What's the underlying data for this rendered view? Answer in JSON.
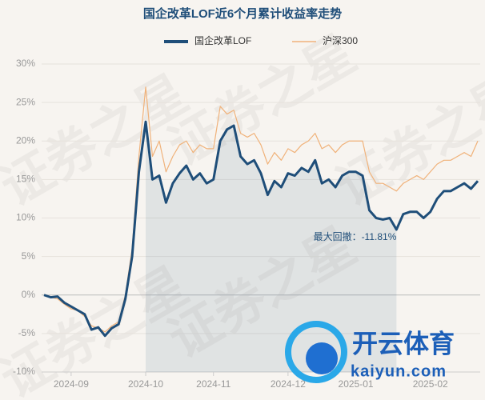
{
  "chart_data": {
    "type": "line",
    "title": "国企改革LOF近6个月累计收益率走势",
    "annotation": "最大回撤：-11.81%",
    "watermark": "证券之星",
    "logo_text": "开云体育",
    "logo_subtext": "kaiyun.com",
    "categories": [
      null,
      null,
      null,
      null,
      "2024-09",
      null,
      null,
      null,
      null,
      null,
      null,
      null,
      null,
      null,
      null,
      "2024-10",
      null,
      null,
      null,
      null,
      null,
      null,
      null,
      null,
      null,
      "2024-11",
      null,
      null,
      null,
      null,
      null,
      null,
      null,
      null,
      null,
      null,
      "2024-12",
      null,
      null,
      null,
      null,
      null,
      null,
      null,
      null,
      null,
      "2025-01",
      null,
      null,
      null,
      null,
      null,
      null,
      null,
      null,
      null,
      null,
      "2025-02",
      null,
      null,
      null,
      null,
      null,
      null,
      null
    ],
    "series": [
      {
        "name": "国企改革LOF",
        "color": "#1f4e79",
        "values": [
          0,
          -0.3,
          -0.2,
          -1,
          -1.5,
          -2,
          -2.5,
          -4.5,
          -4.2,
          -5.3,
          -4.3,
          -3.8,
          -0.5,
          5,
          16,
          22.5,
          15,
          15.5,
          12,
          14.5,
          15.8,
          16.8,
          15,
          15.8,
          14.5,
          15,
          20,
          21.5,
          22,
          18,
          17,
          17.5,
          15.8,
          13,
          14.8,
          14,
          15.8,
          15.5,
          16.5,
          16,
          17.5,
          14.5,
          15,
          14,
          15.5,
          16,
          16,
          15.5,
          11,
          10,
          9.8,
          10,
          8.5,
          10.5,
          10.8,
          10.8,
          10,
          10.8,
          12.5,
          13.5,
          13.5,
          14,
          14.5,
          13.8,
          14.8
        ]
      },
      {
        "name": "沪深300",
        "color": "#f0b27a",
        "values": [
          0,
          -0.3,
          -0.5,
          -1.2,
          -1.8,
          -2,
          -2.8,
          -4,
          -4.3,
          -4.8,
          -4,
          -3.5,
          0,
          6,
          18,
          27,
          18,
          20,
          16,
          18,
          19.5,
          20,
          18.5,
          19.5,
          19,
          19,
          24.5,
          23.5,
          24,
          21,
          20.5,
          21,
          19.5,
          17,
          18.5,
          17.5,
          19,
          18.5,
          19.5,
          20,
          21,
          19,
          19.5,
          18.5,
          19.5,
          20,
          20,
          20,
          16,
          14.5,
          14.5,
          14,
          13.5,
          14.5,
          15,
          15.5,
          15,
          16,
          17,
          17.5,
          17.5,
          18,
          18.5,
          18,
          20
        ]
      }
    ],
    "ylim": [
      -10,
      30
    ],
    "yticks": [
      {
        "value": -10,
        "label": "-10%"
      },
      {
        "value": -5,
        "label": "-5%"
      },
      {
        "value": 0,
        "label": "0%"
      },
      {
        "value": 5,
        "label": "5%"
      },
      {
        "value": 10,
        "label": "10%"
      },
      {
        "value": 15,
        "label": "15%"
      },
      {
        "value": 20,
        "label": "20%"
      },
      {
        "value": 25,
        "label": "25%"
      },
      {
        "value": 30,
        "label": "30%"
      }
    ],
    "grid": true
  }
}
